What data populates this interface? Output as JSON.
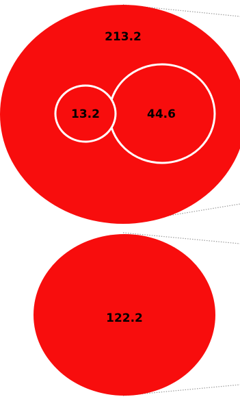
{
  "chart_data": {
    "type": "bubble",
    "title": "",
    "groups": [
      {
        "value": 213.2,
        "label": "213.2",
        "children": [
          {
            "value": 13.2,
            "label": "13.2"
          },
          {
            "value": 44.6,
            "label": "44.6"
          }
        ]
      },
      {
        "value": 122.2,
        "label": "122.2",
        "children": []
      }
    ],
    "colors": {
      "fill": "#f80d0d",
      "child_stroke": "#ffffff",
      "label": "#000000",
      "connector": "#9a9a9a"
    }
  }
}
